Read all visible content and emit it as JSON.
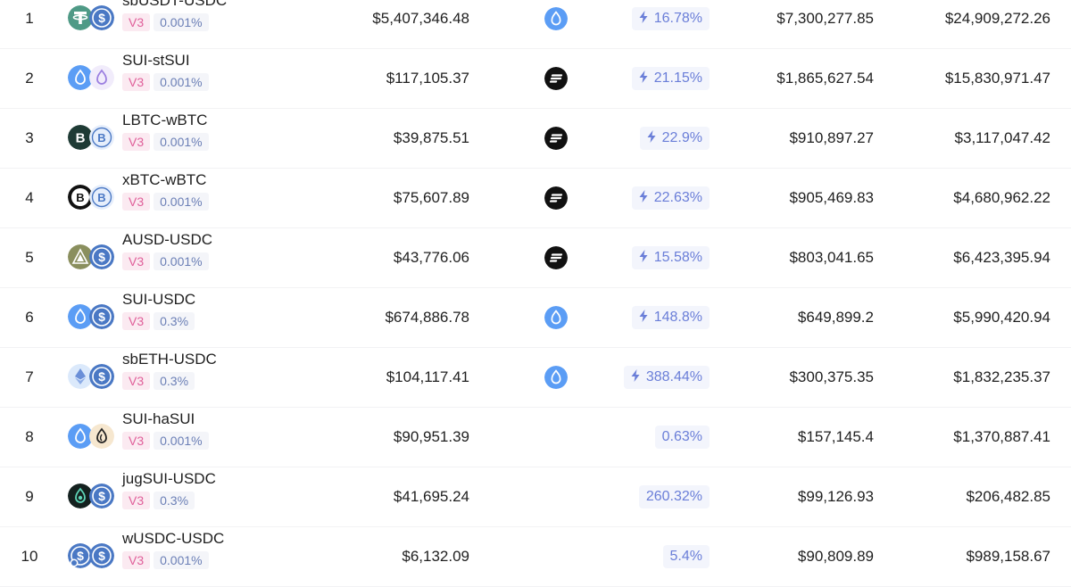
{
  "pools": [
    {
      "rank": "1",
      "pair": "sbUSDT-USDC",
      "version": "V3",
      "fee": "0.001%",
      "tvl": "$5,407,346.48",
      "protocol_icon": "sui-icon",
      "apr": "16.78%",
      "apr_boosted": true,
      "volume": "$7,300,277.85",
      "fees": "$24,909,272.26",
      "coin_a": "usdt-icon",
      "coin_b": "usdc-icon"
    },
    {
      "rank": "2",
      "pair": "SUI-stSUI",
      "version": "V3",
      "fee": "0.001%",
      "tvl": "$117,105.37",
      "protocol_icon": "stripes-icon",
      "apr": "21.15%",
      "apr_boosted": true,
      "volume": "$1,865,627.54",
      "fees": "$15,830,971.47",
      "coin_a": "sui-icon",
      "coin_b": "stsui-icon"
    },
    {
      "rank": "3",
      "pair": "LBTC-wBTC",
      "version": "V3",
      "fee": "0.001%",
      "tvl": "$39,875.51",
      "protocol_icon": "stripes-icon",
      "apr": "22.9%",
      "apr_boosted": true,
      "volume": "$910,897.27",
      "fees": "$3,117,047.42",
      "coin_a": "lbtc-icon",
      "coin_b": "wbtc-icon"
    },
    {
      "rank": "4",
      "pair": "xBTC-wBTC",
      "version": "V3",
      "fee": "0.001%",
      "tvl": "$75,607.89",
      "protocol_icon": "stripes-icon",
      "apr": "22.63%",
      "apr_boosted": true,
      "volume": "$905,469.83",
      "fees": "$4,680,962.22",
      "coin_a": "xbtc-icon",
      "coin_b": "wbtc-icon"
    },
    {
      "rank": "5",
      "pair": "AUSD-USDC",
      "version": "V3",
      "fee": "0.001%",
      "tvl": "$43,776.06",
      "protocol_icon": "stripes-icon",
      "apr": "15.58%",
      "apr_boosted": true,
      "volume": "$803,041.65",
      "fees": "$6,423,395.94",
      "coin_a": "ausd-icon",
      "coin_b": "usdc-icon"
    },
    {
      "rank": "6",
      "pair": "SUI-USDC",
      "version": "V3",
      "fee": "0.3%",
      "tvl": "$674,886.78",
      "protocol_icon": "sui-icon",
      "apr": "148.8%",
      "apr_boosted": true,
      "volume": "$649,899.2",
      "fees": "$5,990,420.94",
      "coin_a": "sui-icon",
      "coin_b": "usdc-icon"
    },
    {
      "rank": "7",
      "pair": "sbETH-USDC",
      "version": "V3",
      "fee": "0.3%",
      "tvl": "$104,117.41",
      "protocol_icon": "sui-icon",
      "apr": "388.44%",
      "apr_boosted": true,
      "volume": "$300,375.35",
      "fees": "$1,832,235.37",
      "coin_a": "eth-icon",
      "coin_b": "usdc-icon"
    },
    {
      "rank": "8",
      "pair": "SUI-haSUI",
      "version": "V3",
      "fee": "0.001%",
      "tvl": "$90,951.39",
      "protocol_icon": "",
      "apr": "0.63%",
      "apr_boosted": false,
      "volume": "$157,145.4",
      "fees": "$1,370,887.41",
      "coin_a": "sui-icon",
      "coin_b": "hasui-icon"
    },
    {
      "rank": "9",
      "pair": "jugSUI-USDC",
      "version": "V3",
      "fee": "0.3%",
      "tvl": "$41,695.24",
      "protocol_icon": "",
      "apr": "260.32%",
      "apr_boosted": false,
      "volume": "$99,126.93",
      "fees": "$206,482.85",
      "coin_a": "jugsui-icon",
      "coin_b": "usdc-icon"
    },
    {
      "rank": "10",
      "pair": "wUSDC-USDC",
      "version": "V3",
      "fee": "0.001%",
      "tvl": "$6,132.09",
      "protocol_icon": "",
      "apr": "5.4%",
      "apr_boosted": false,
      "volume": "$90,809.89",
      "fees": "$989,158.67",
      "coin_a": "wusdc-icon",
      "coin_b": "usdc-icon"
    }
  ],
  "colors": {
    "version_text": "#e0609a",
    "version_bg": "#fbeaf1",
    "fee_text": "#6b7fb6",
    "fee_bg": "#f4f5f9",
    "apr_text": "#6a7ed8",
    "apr_bg": "#f3f5fc",
    "sui_blue": "#4da2ff",
    "usdc_blue": "#2775ca",
    "usdt_green": "#50af95"
  }
}
